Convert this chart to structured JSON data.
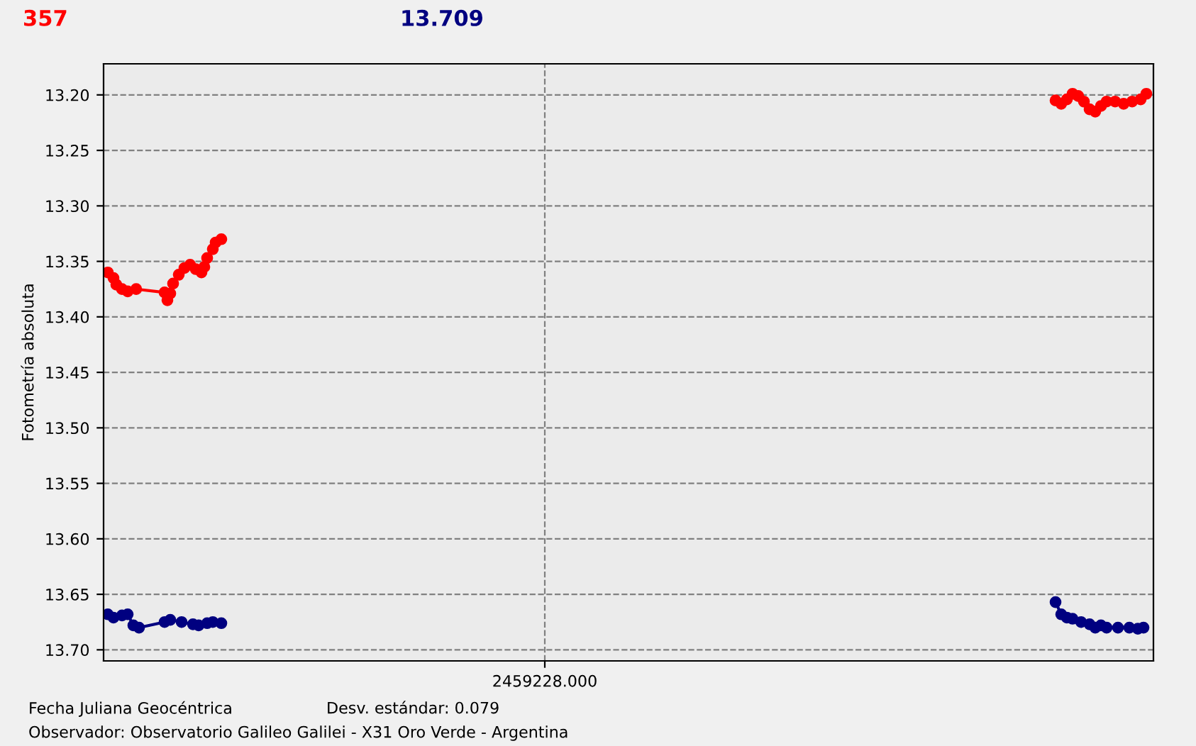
{
  "chart_data": {
    "type": "line",
    "ylabel": "Fotometría absoluta",
    "annotations": [
      "357",
      "13.709",
      "Fecha Juliana Geocéntrica",
      "Desv. estándar: 0.079",
      "Observador: Observatorio Galileo Galilei - X31 Oro Verde - Argentina"
    ],
    "categories": [
      null,
      null,
      null,
      null,
      null,
      null,
      null,
      null,
      null,
      null,
      null,
      null,
      null,
      null,
      null,
      null,
      null,
      null,
      null,
      null,
      null,
      null,
      null,
      null,
      null,
      null,
      null,
      null,
      null,
      null,
      null,
      null,
      null,
      null,
      null,
      null,
      null,
      null,
      null,
      null,
      null,
      null,
      null,
      null,
      null,
      null,
      null,
      null,
      null,
      null,
      null,
      null,
      null,
      null,
      null,
      null,
      null,
      null,
      null,
      null,
      null,
      null,
      null,
      null,
      null,
      null,
      null,
      null,
      null,
      null,
      null,
      null,
      null,
      null,
      null,
      null,
      null,
      null,
      null,
      null,
      null,
      null,
      null,
      null,
      null,
      null,
      null,
      null,
      null,
      null,
      null,
      null,
      null,
      null,
      null,
      null,
      null,
      null,
      null,
      null,
      null,
      null,
      null,
      null,
      null,
      null,
      null,
      null,
      null,
      null,
      null,
      null,
      null,
      null,
      null,
      null,
      null,
      null,
      null,
      null,
      null,
      null,
      null,
      null,
      null,
      null,
      null,
      null,
      null,
      null,
      null,
      null,
      null,
      null,
      null,
      null,
      null,
      null,
      null,
      null,
      null,
      null,
      null,
      null,
      null,
      null,
      null,
      null,
      null,
      null,
      null,
      null,
      null,
      null,
      null,
      "2459228.000",
      null,
      null,
      null,
      null,
      null,
      null,
      null,
      null,
      null,
      null,
      null,
      null,
      null,
      null,
      null,
      null,
      null,
      null,
      null,
      null,
      null,
      null,
      null,
      null,
      null,
      null,
      null,
      null,
      null,
      null,
      null,
      null,
      null,
      null,
      null,
      null,
      null,
      null,
      null,
      null,
      null,
      null,
      null,
      null,
      null,
      null,
      null,
      null,
      null,
      null,
      null,
      null,
      null,
      null,
      null,
      null,
      null,
      null,
      null,
      null,
      null,
      null,
      null,
      null,
      null,
      null,
      null,
      null,
      null,
      null,
      null,
      null,
      null,
      null,
      null,
      null,
      null,
      null,
      null,
      null,
      null,
      null,
      null,
      null,
      null,
      null,
      null,
      null,
      null,
      null,
      null,
      null,
      null,
      null,
      null,
      null,
      null,
      null,
      null,
      null,
      null,
      null,
      null,
      null,
      null,
      null,
      null,
      null,
      null,
      null,
      null,
      null,
      null,
      null,
      null,
      null,
      null,
      null,
      null,
      null,
      null,
      null,
      null,
      null,
      null,
      null,
      null,
      null,
      null,
      null,
      null,
      null,
      null,
      null,
      null,
      null,
      null,
      null,
      null,
      null,
      null,
      null,
      null,
      null,
      null,
      null,
      null,
      null,
      null,
      null,
      null,
      null,
      null,
      null,
      null,
      null,
      null,
      null,
      null,
      null,
      null,
      null,
      null,
      null,
      null,
      null,
      null,
      null,
      null,
      null,
      null,
      null,
      null,
      null,
      null,
      null,
      null,
      null,
      null,
      null,
      null,
      null,
      null,
      null,
      null,
      null,
      null,
      null,
      null,
      null,
      null,
      null,
      null,
      null,
      null,
      null,
      null,
      null,
      null,
      null,
      null,
      null,
      null,
      null,
      null,
      null,
      null,
      null,
      null,
      null,
      null,
      null,
      null,
      null
    ],
    "series": [
      {
        "color": "#ff0000",
        "values": [
          null,
          13.36,
          null,
          13.365,
          13.371,
          null,
          13.375,
          null,
          13.377,
          null,
          null,
          13.375,
          null,
          null,
          null,
          null,
          null,
          null,
          null,
          null,
          null,
          13.378,
          13.385,
          13.379,
          13.37,
          null,
          13.362,
          null,
          13.356,
          null,
          13.353,
          null,
          13.357,
          null,
          13.36,
          13.355,
          13.347,
          null,
          13.339,
          13.333,
          null,
          13.33,
          null,
          null,
          null,
          null,
          null,
          null,
          null,
          null,
          null,
          null,
          null,
          null,
          null,
          null,
          null,
          null,
          null,
          null,
          null,
          null,
          null,
          null,
          null,
          null,
          null,
          null,
          null,
          null,
          null,
          null,
          null,
          null,
          null,
          null,
          null,
          null,
          null,
          null,
          null,
          null,
          null,
          null,
          null,
          null,
          null,
          null,
          null,
          null,
          null,
          null,
          null,
          null,
          null,
          null,
          null,
          null,
          null,
          null,
          null,
          null,
          null,
          null,
          null,
          null,
          null,
          null,
          null,
          null,
          null,
          null,
          null,
          null,
          null,
          null,
          null,
          null,
          null,
          null,
          null,
          null,
          null,
          null,
          null,
          null,
          null,
          null,
          null,
          null,
          null,
          null,
          null,
          null,
          null,
          null,
          null,
          null,
          null,
          null,
          null,
          null,
          null,
          null,
          null,
          null,
          null,
          null,
          null,
          null,
          null,
          null,
          null,
          null,
          null,
          null,
          null,
          null,
          null,
          null,
          null,
          null,
          null,
          null,
          null,
          null,
          null,
          null,
          null,
          null,
          null,
          null,
          null,
          null,
          null,
          null,
          null,
          null,
          null,
          null,
          null,
          null,
          null,
          null,
          null,
          null,
          null,
          null,
          null,
          null,
          null,
          null,
          null,
          null,
          null,
          null,
          null,
          null,
          null,
          null,
          null,
          null,
          null,
          null,
          null,
          null,
          null,
          null,
          null,
          null,
          null,
          null,
          null,
          null,
          null,
          null,
          null,
          null,
          null,
          null,
          null,
          null,
          null,
          null,
          null,
          null,
          null,
          null,
          null,
          null,
          null,
          null,
          null,
          null,
          null,
          null,
          null,
          null,
          null,
          null,
          null,
          null,
          null,
          null,
          null,
          null,
          null,
          null,
          null,
          null,
          null,
          null,
          null,
          null,
          null,
          null,
          null,
          null,
          null,
          null,
          null,
          null,
          null,
          null,
          null,
          null,
          null,
          null,
          null,
          null,
          null,
          null,
          null,
          null,
          null,
          null,
          null,
          null,
          null,
          null,
          null,
          null,
          null,
          null,
          null,
          null,
          null,
          null,
          null,
          null,
          null,
          null,
          null,
          null,
          null,
          null,
          null,
          null,
          null,
          null,
          null,
          null,
          null,
          null,
          null,
          null,
          null,
          null,
          null,
          null,
          null,
          null,
          null,
          null,
          null,
          null,
          null,
          null,
          null,
          null,
          null,
          null,
          null,
          null,
          null,
          null,
          null,
          null,
          null,
          null,
          null,
          null,
          null,
          null,
          null,
          13.205,
          null,
          13.208,
          null,
          13.204,
          null,
          13.199,
          null,
          13.201,
          null,
          13.206,
          null,
          13.213,
          null,
          13.215,
          null,
          13.21,
          null,
          13.206,
          null,
          null,
          13.206,
          null,
          null,
          13.208,
          null,
          null,
          13.206,
          null,
          null,
          13.204,
          null,
          13.199,
          null,
          null
        ]
      },
      {
        "color": "#000080",
        "values": [
          null,
          13.668,
          null,
          13.671,
          null,
          null,
          13.669,
          null,
          13.668,
          null,
          13.678,
          null,
          13.68,
          null,
          null,
          null,
          null,
          null,
          null,
          null,
          null,
          13.675,
          null,
          13.673,
          null,
          null,
          null,
          13.675,
          null,
          null,
          null,
          13.677,
          null,
          13.678,
          null,
          null,
          13.676,
          null,
          13.675,
          null,
          null,
          13.676,
          null,
          null,
          null,
          null,
          null,
          null,
          null,
          null,
          null,
          null,
          null,
          null,
          null,
          null,
          null,
          null,
          null,
          null,
          null,
          null,
          null,
          null,
          null,
          null,
          null,
          null,
          null,
          null,
          null,
          null,
          null,
          null,
          null,
          null,
          null,
          null,
          null,
          null,
          null,
          null,
          null,
          null,
          null,
          null,
          null,
          null,
          null,
          null,
          null,
          null,
          null,
          null,
          null,
          null,
          null,
          null,
          null,
          null,
          null,
          null,
          null,
          null,
          null,
          null,
          null,
          null,
          null,
          null,
          null,
          null,
          null,
          null,
          null,
          null,
          null,
          null,
          null,
          null,
          null,
          null,
          null,
          null,
          null,
          null,
          null,
          null,
          null,
          null,
          null,
          null,
          null,
          null,
          null,
          null,
          null,
          null,
          null,
          null,
          null,
          null,
          null,
          null,
          null,
          null,
          null,
          null,
          null,
          null,
          null,
          null,
          null,
          null,
          null,
          null,
          null,
          null,
          null,
          null,
          null,
          null,
          null,
          null,
          null,
          null,
          null,
          null,
          null,
          null,
          null,
          null,
          null,
          null,
          null,
          null,
          null,
          null,
          null,
          null,
          null,
          null,
          null,
          null,
          null,
          null,
          null,
          null,
          null,
          null,
          null,
          null,
          null,
          null,
          null,
          null,
          null,
          null,
          null,
          null,
          null,
          null,
          null,
          null,
          null,
          null,
          null,
          null,
          null,
          null,
          null,
          null,
          null,
          null,
          null,
          null,
          null,
          null,
          null,
          null,
          null,
          null,
          null,
          null,
          null,
          null,
          null,
          null,
          null,
          null,
          null,
          null,
          null,
          null,
          null,
          null,
          null,
          null,
          null,
          null,
          null,
          null,
          null,
          null,
          null,
          null,
          null,
          null,
          null,
          null,
          null,
          null,
          null,
          null,
          null,
          null,
          null,
          null,
          null,
          null,
          null,
          null,
          null,
          null,
          null,
          null,
          null,
          null,
          null,
          null,
          null,
          null,
          null,
          null,
          null,
          null,
          null,
          null,
          null,
          null,
          null,
          null,
          null,
          null,
          null,
          null,
          null,
          null,
          null,
          null,
          null,
          null,
          null,
          null,
          null,
          null,
          null,
          null,
          null,
          null,
          null,
          null,
          null,
          null,
          null,
          null,
          null,
          null,
          null,
          null,
          null,
          null,
          null,
          null,
          null,
          null,
          null,
          null,
          null,
          null,
          null,
          null,
          null,
          null,
          null,
          null,
          null,
          null,
          null,
          null,
          null,
          null,
          null,
          null,
          null,
          13.657,
          null,
          13.668,
          null,
          13.671,
          null,
          13.672,
          null,
          null,
          13.675,
          null,
          null,
          13.677,
          null,
          13.68,
          null,
          13.678,
          null,
          13.68,
          null,
          null,
          null,
          13.68,
          null,
          null,
          null,
          13.68,
          null,
          null,
          13.681,
          null,
          13.68,
          null,
          null,
          null
        ]
      }
    ],
    "ylim": [
      13.71,
      13.172
    ],
    "yticks": [
      {
        "value": 13.2,
        "label": "13.20"
      },
      {
        "value": 13.25,
        "label": "13.25"
      },
      {
        "value": 13.3,
        "label": "13.30"
      },
      {
        "value": 13.35,
        "label": "13.35"
      },
      {
        "value": 13.4,
        "label": "13.40"
      },
      {
        "value": 13.45,
        "label": "13.45"
      },
      {
        "value": 13.5,
        "label": "13.50"
      },
      {
        "value": 13.55,
        "label": "13.55"
      },
      {
        "value": 13.6,
        "label": "13.60"
      },
      {
        "value": 13.65,
        "label": "13.65"
      },
      {
        "value": 13.7,
        "label": "13.70"
      }
    ],
    "grid": true,
    "marker": "circle",
    "line_style": "solid"
  }
}
